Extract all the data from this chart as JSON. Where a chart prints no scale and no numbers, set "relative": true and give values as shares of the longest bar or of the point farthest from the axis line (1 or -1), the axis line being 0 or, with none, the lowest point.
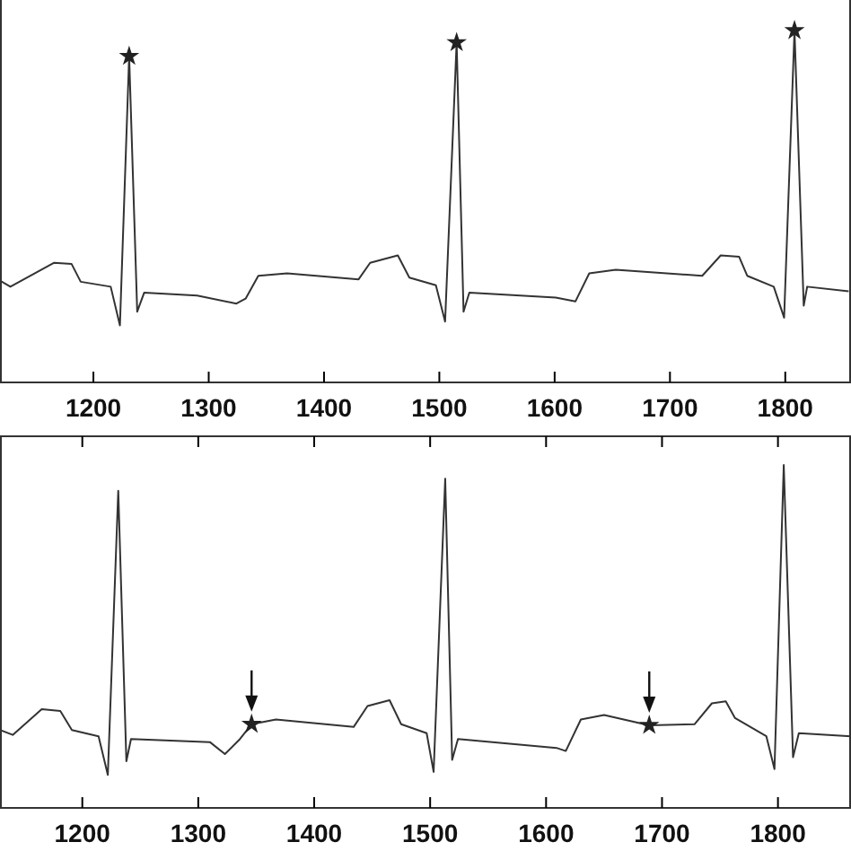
{
  "chart_data": [
    {
      "type": "line",
      "relative": true,
      "xlim": [
        1119,
        1857
      ],
      "xticks": [
        1200,
        1300,
        1400,
        1500,
        1600,
        1700,
        1800
      ],
      "tick_labels": "x",
      "grid": false,
      "series": [
        {
          "type": "line",
          "marker": "none",
          "color": "#333333",
          "x": [
            1119,
            1128,
            1166,
            1181,
            1189,
            1215,
            1223,
            1231,
            1238,
            1244,
            1290,
            1324,
            1332,
            1343,
            1368,
            1430,
            1440,
            1464,
            1474,
            1497,
            1505,
            1515,
            1521,
            1526,
            1601,
            1618,
            1630,
            1653,
            1728,
            1744,
            1760,
            1767,
            1790,
            1799,
            1808,
            1816,
            1819,
            1855
          ],
          "values": [
            0.289,
            0.272,
            0.34,
            0.337,
            0.286,
            0.272,
            0.162,
            0.927,
            0.201,
            0.255,
            0.247,
            0.224,
            0.238,
            0.303,
            0.31,
            0.293,
            0.34,
            0.361,
            0.298,
            0.276,
            0.173,
            0.966,
            0.201,
            0.255,
            0.241,
            0.23,
            0.31,
            0.32,
            0.303,
            0.361,
            0.357,
            0.303,
            0.272,
            0.184,
            1.0,
            0.218,
            0.272,
            0.259
          ]
        },
        {
          "type": "scatter",
          "marker": "star",
          "color": "#222222",
          "x": [
            1231,
            1515,
            1808
          ],
          "values": [
            0.927,
            0.966,
            1.0
          ]
        }
      ]
    },
    {
      "type": "line",
      "relative": true,
      "xlim": [
        1129,
        1863
      ],
      "xticks": [
        1200,
        1300,
        1400,
        1500,
        1600,
        1700,
        1800
      ],
      "tick_labels": "x",
      "grid": false,
      "series": [
        {
          "type": "line",
          "marker": "none",
          "color": "#333333",
          "x": [
            1129,
            1140,
            1165,
            1181,
            1191,
            1214,
            1222,
            1231,
            1238,
            1242,
            1310,
            1323,
            1336,
            1346,
            1367,
            1434,
            1446,
            1465,
            1475,
            1497,
            1503,
            1513,
            1519,
            1524,
            1609,
            1617,
            1630,
            1650,
            1689,
            1728,
            1743,
            1755,
            1763,
            1790,
            1797,
            1805,
            1813,
            1818,
            1863
          ],
          "values": [
            0.227,
            0.213,
            0.288,
            0.283,
            0.227,
            0.209,
            0.096,
            0.925,
            0.136,
            0.201,
            0.192,
            0.157,
            0.201,
            0.244,
            0.258,
            0.236,
            0.297,
            0.314,
            0.244,
            0.218,
            0.105,
            0.96,
            0.14,
            0.201,
            0.175,
            0.166,
            0.258,
            0.271,
            0.241,
            0.244,
            0.305,
            0.311,
            0.262,
            0.209,
            0.113,
            1.0,
            0.148,
            0.218,
            0.209
          ]
        },
        {
          "type": "scatter",
          "marker": "star",
          "color": "#222222",
          "x": [
            1346,
            1689
          ],
          "values": [
            0.244,
            0.241
          ]
        }
      ]
    }
  ]
}
